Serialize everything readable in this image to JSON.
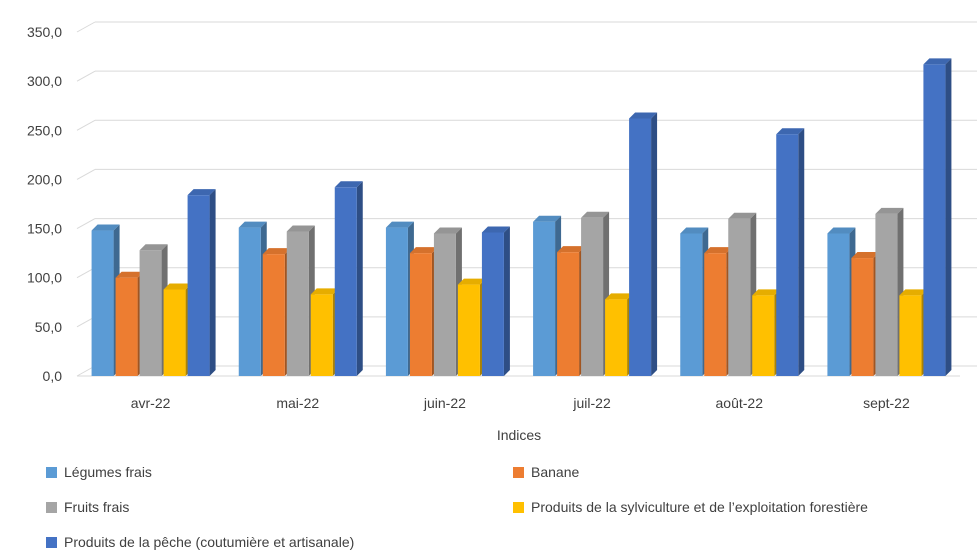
{
  "chart_data": {
    "type": "bar",
    "categories": [
      "avr-22",
      "mai-22",
      "juin-22",
      "juil-22",
      "août-22",
      "sept-22"
    ],
    "series": [
      {
        "name": "Légumes frais",
        "color": "#5B9BD5",
        "values": [
          148,
          151,
          151,
          157,
          145,
          145
        ]
      },
      {
        "name": "Banane",
        "color": "#ED7D31",
        "values": [
          100,
          124,
          125,
          126,
          125,
          120
        ]
      },
      {
        "name": "Fruits frais",
        "color": "#A5A5A5",
        "values": [
          128,
          147,
          145,
          161,
          160,
          165
        ]
      },
      {
        "name": "Produits de la sylviculture et de l’exploitation forestière",
        "color": "#FFC000",
        "values": [
          88,
          83,
          93,
          78,
          82,
          82
        ]
      },
      {
        "name": "Produits de la pêche (coutumière et artisanale)",
        "color": "#4472C4",
        "values": [
          184,
          192,
          146,
          262,
          246,
          317
        ]
      }
    ],
    "xlabel": "Indices",
    "ylabel": "",
    "ylim": [
      0,
      350
    ],
    "yticks": [
      "0,0",
      "50,0",
      "100,0",
      "150,0",
      "200,0",
      "250,0",
      "300,0",
      "350,0"
    ],
    "grid": true,
    "legend_position": "bottom"
  }
}
